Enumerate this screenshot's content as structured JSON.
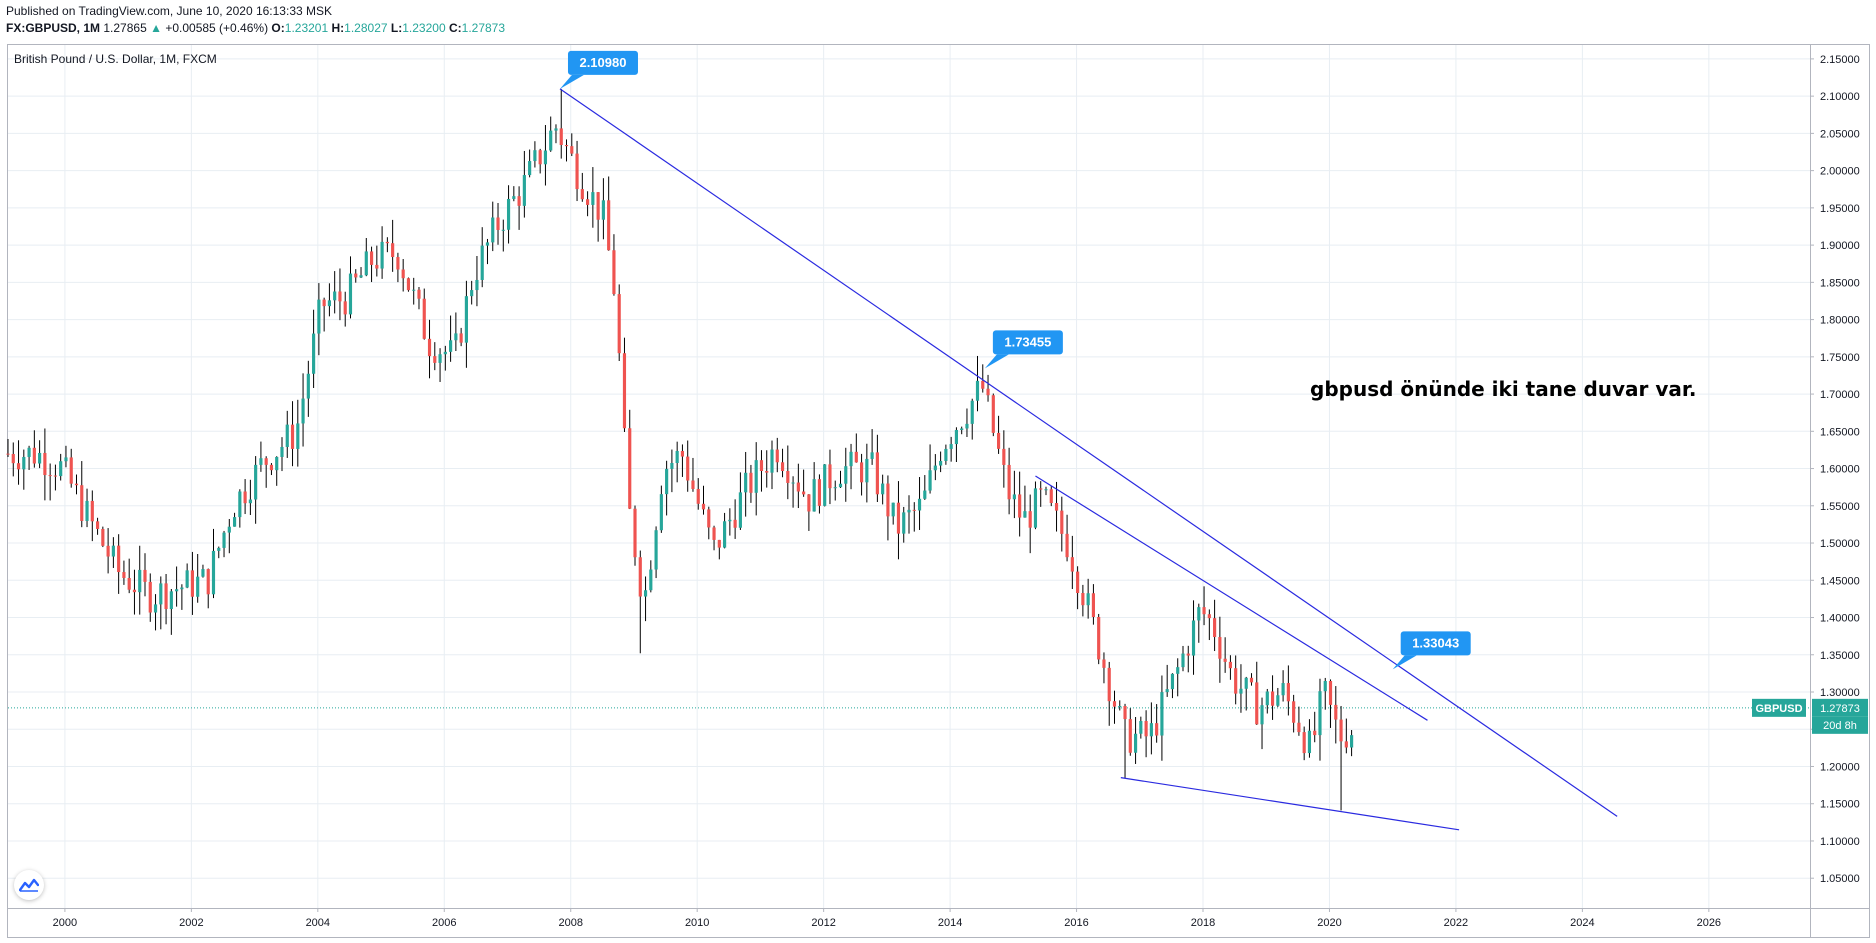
{
  "header": {
    "published": "Published on TradingView.com, June 10, 2020 16:13:33 MSK",
    "symbol": "FX:GBPUSD, 1M",
    "last": "1.27865",
    "change_arrow": "▲",
    "change": "+0.00585 (+0.46%)",
    "open_label": "O:",
    "open": "1.23201",
    "high_label": "H:",
    "high": "1.28027",
    "low_label": "L:",
    "low": "1.23200",
    "close_label": "C:",
    "close": "1.27873"
  },
  "chart_title": "British Pound / U.S. Dollar, 1M, FXCM",
  "annotation": "gbpusd önünde iki tane duvar var.",
  "price_tag": {
    "symbol": "GBPUSD",
    "value": "1.27873",
    "countdown": "20d 8h"
  },
  "callouts": [
    {
      "label": "2.10980",
      "x": 2007.83,
      "y": 2.1098
    },
    {
      "label": "1.73455",
      "x": 2014.55,
      "y": 1.7345
    },
    {
      "label": "1.33043",
      "x": 2021.0,
      "y": 1.3304
    }
  ],
  "colors": {
    "up": "#26a69a",
    "down": "#ef5350",
    "trendline": "#2a2ae0",
    "callout": "#2196f3",
    "grid": "#e8eef3"
  },
  "chart_data": {
    "type": "candlestick",
    "title": "British Pound / U.S. Dollar, 1M, FXCM",
    "interval": "1M",
    "xlim": [
      1999.1,
      2027.6
    ],
    "ylim": [
      1.01,
      2.17
    ],
    "x_ticks": [
      "2000",
      "2002",
      "2004",
      "2006",
      "2008",
      "2010",
      "2012",
      "2014",
      "2016",
      "2018",
      "2020",
      "2022",
      "2024",
      "2026"
    ],
    "y_ticks": [
      "2.15000",
      "2.10000",
      "2.05000",
      "2.00000",
      "1.95000",
      "1.90000",
      "1.85000",
      "1.80000",
      "1.75000",
      "1.70000",
      "1.65000",
      "1.60000",
      "1.55000",
      "1.50000",
      "1.45000",
      "1.40000",
      "1.35000",
      "1.30000",
      "1.25000",
      "1.20000",
      "1.15000",
      "1.10000",
      "1.05000"
    ],
    "price_line": 1.27873,
    "trendlines": [
      {
        "name": "upper",
        "x1": 2007.83,
        "y1": 2.1098,
        "x2": 2024.55,
        "y2": 1.133
      },
      {
        "name": "middle",
        "x1": 2015.35,
        "y1": 1.59,
        "x2": 2021.55,
        "y2": 1.262
      },
      {
        "name": "lower",
        "x1": 2016.7,
        "y1": 1.185,
        "x2": 2022.05,
        "y2": 1.115
      }
    ],
    "anchors": [
      [
        1999.1,
        1.62
      ],
      [
        1999.6,
        1.62
      ],
      [
        2000.0,
        1.6
      ],
      [
        2000.5,
        1.52
      ],
      [
        2000.9,
        1.46
      ],
      [
        2001.4,
        1.43
      ],
      [
        2001.8,
        1.44
      ],
      [
        2002.3,
        1.45
      ],
      [
        2002.7,
        1.55
      ],
      [
        2003.2,
        1.61
      ],
      [
        2003.7,
        1.65
      ],
      [
        2004.1,
        1.82
      ],
      [
        2004.5,
        1.83
      ],
      [
        2004.9,
        1.88
      ],
      [
        2005.3,
        1.89
      ],
      [
        2005.8,
        1.77
      ],
      [
        2006.2,
        1.75
      ],
      [
        2006.5,
        1.86
      ],
      [
        2006.9,
        1.93
      ],
      [
        2007.3,
        1.98
      ],
      [
        2007.8,
        2.06
      ],
      [
        2008.2,
        1.99
      ],
      [
        2008.55,
        1.94
      ],
      [
        2008.75,
        1.83
      ],
      [
        2008.95,
        1.55
      ],
      [
        2009.2,
        1.42
      ],
      [
        2009.5,
        1.6
      ],
      [
        2009.8,
        1.62
      ],
      [
        2010.3,
        1.49
      ],
      [
        2010.8,
        1.57
      ],
      [
        2011.3,
        1.63
      ],
      [
        2011.8,
        1.56
      ],
      [
        2012.3,
        1.6
      ],
      [
        2012.8,
        1.6
      ],
      [
        2013.2,
        1.52
      ],
      [
        2013.6,
        1.55
      ],
      [
        2013.9,
        1.63
      ],
      [
        2014.55,
        1.71
      ],
      [
        2014.95,
        1.57
      ],
      [
        2015.2,
        1.53
      ],
      [
        2015.5,
        1.56
      ],
      [
        2015.9,
        1.5
      ],
      [
        2016.2,
        1.42
      ],
      [
        2016.5,
        1.33
      ],
      [
        2016.8,
        1.24
      ],
      [
        2017.2,
        1.24
      ],
      [
        2017.6,
        1.32
      ],
      [
        2018.0,
        1.41
      ],
      [
        2018.2,
        1.39
      ],
      [
        2018.5,
        1.32
      ],
      [
        2018.9,
        1.28
      ],
      [
        2019.3,
        1.3
      ],
      [
        2019.55,
        1.26
      ],
      [
        2019.75,
        1.22
      ],
      [
        2019.95,
        1.3
      ],
      [
        2020.2,
        1.24
      ],
      [
        2020.4,
        1.25
      ]
    ]
  }
}
